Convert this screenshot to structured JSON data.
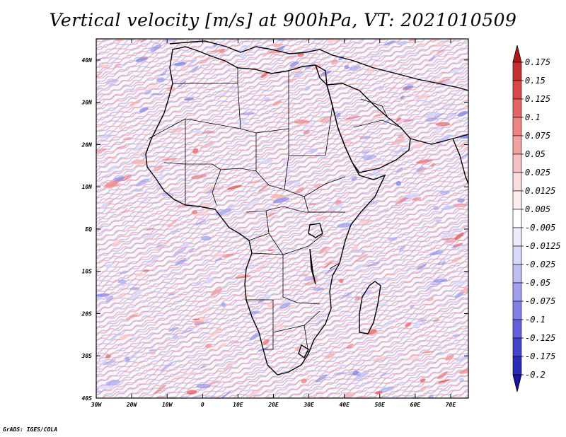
{
  "title": "Vertical velocity [m/s] at 900hPa, VT: 2021010509",
  "credit": "GrADS: IGES/COLA",
  "map": {
    "lon_range": [
      -30,
      75
    ],
    "lat_range": [
      -40,
      45
    ],
    "lat_ticks": [
      {
        "value": 40,
        "label": "40N"
      },
      {
        "value": 30,
        "label": "30N"
      },
      {
        "value": 20,
        "label": "20N"
      },
      {
        "value": 10,
        "label": "10N"
      },
      {
        "value": 0,
        "label": "EQ"
      },
      {
        "value": -10,
        "label": "10S"
      },
      {
        "value": -20,
        "label": "20S"
      },
      {
        "value": -30,
        "label": "30S"
      },
      {
        "value": -40,
        "label": "40S"
      }
    ],
    "lon_ticks": [
      {
        "value": -30,
        "label": "30W"
      },
      {
        "value": -20,
        "label": "20W"
      },
      {
        "value": -10,
        "label": "10W"
      },
      {
        "value": 0,
        "label": "0"
      },
      {
        "value": 10,
        "label": "10E"
      },
      {
        "value": 20,
        "label": "20E"
      },
      {
        "value": 30,
        "label": "30E"
      },
      {
        "value": 40,
        "label": "40E"
      },
      {
        "value": 50,
        "label": "50E"
      },
      {
        "value": 60,
        "label": "60E"
      },
      {
        "value": 70,
        "label": "70E"
      }
    ]
  },
  "colorbar": {
    "levels": [
      {
        "label": "0.175",
        "color": "#b0191a"
      },
      {
        "label": "0.15",
        "color": "#c52f2f"
      },
      {
        "label": "0.125",
        "color": "#d84848"
      },
      {
        "label": "0.1",
        "color": "#e46464"
      },
      {
        "label": "0.075",
        "color": "#ed8383"
      },
      {
        "label": "0.05",
        "color": "#f3a2a2"
      },
      {
        "label": "0.025",
        "color": "#f8c1c1"
      },
      {
        "label": "0.0125",
        "color": "#fbdcdc"
      },
      {
        "label": "0.005",
        "color": "#fdeeee"
      },
      {
        "label": "-0.005",
        "color": "#ffffff"
      },
      {
        "label": "-0.0125",
        "color": "#ececfe"
      },
      {
        "label": "-0.025",
        "color": "#d8d8fa"
      },
      {
        "label": "-0.05",
        "color": "#bebef5"
      },
      {
        "label": "-0.075",
        "color": "#a0a0ee"
      },
      {
        "label": "-0.1",
        "color": "#8282e6"
      },
      {
        "label": "-0.125",
        "color": "#6262dc"
      },
      {
        "label": "-0.175",
        "color": "#4242cc"
      },
      {
        "label": "-0.2",
        "color": "#2a2ab8"
      }
    ],
    "bottom_color": "#16169e",
    "top_color": "#b0191a"
  }
}
